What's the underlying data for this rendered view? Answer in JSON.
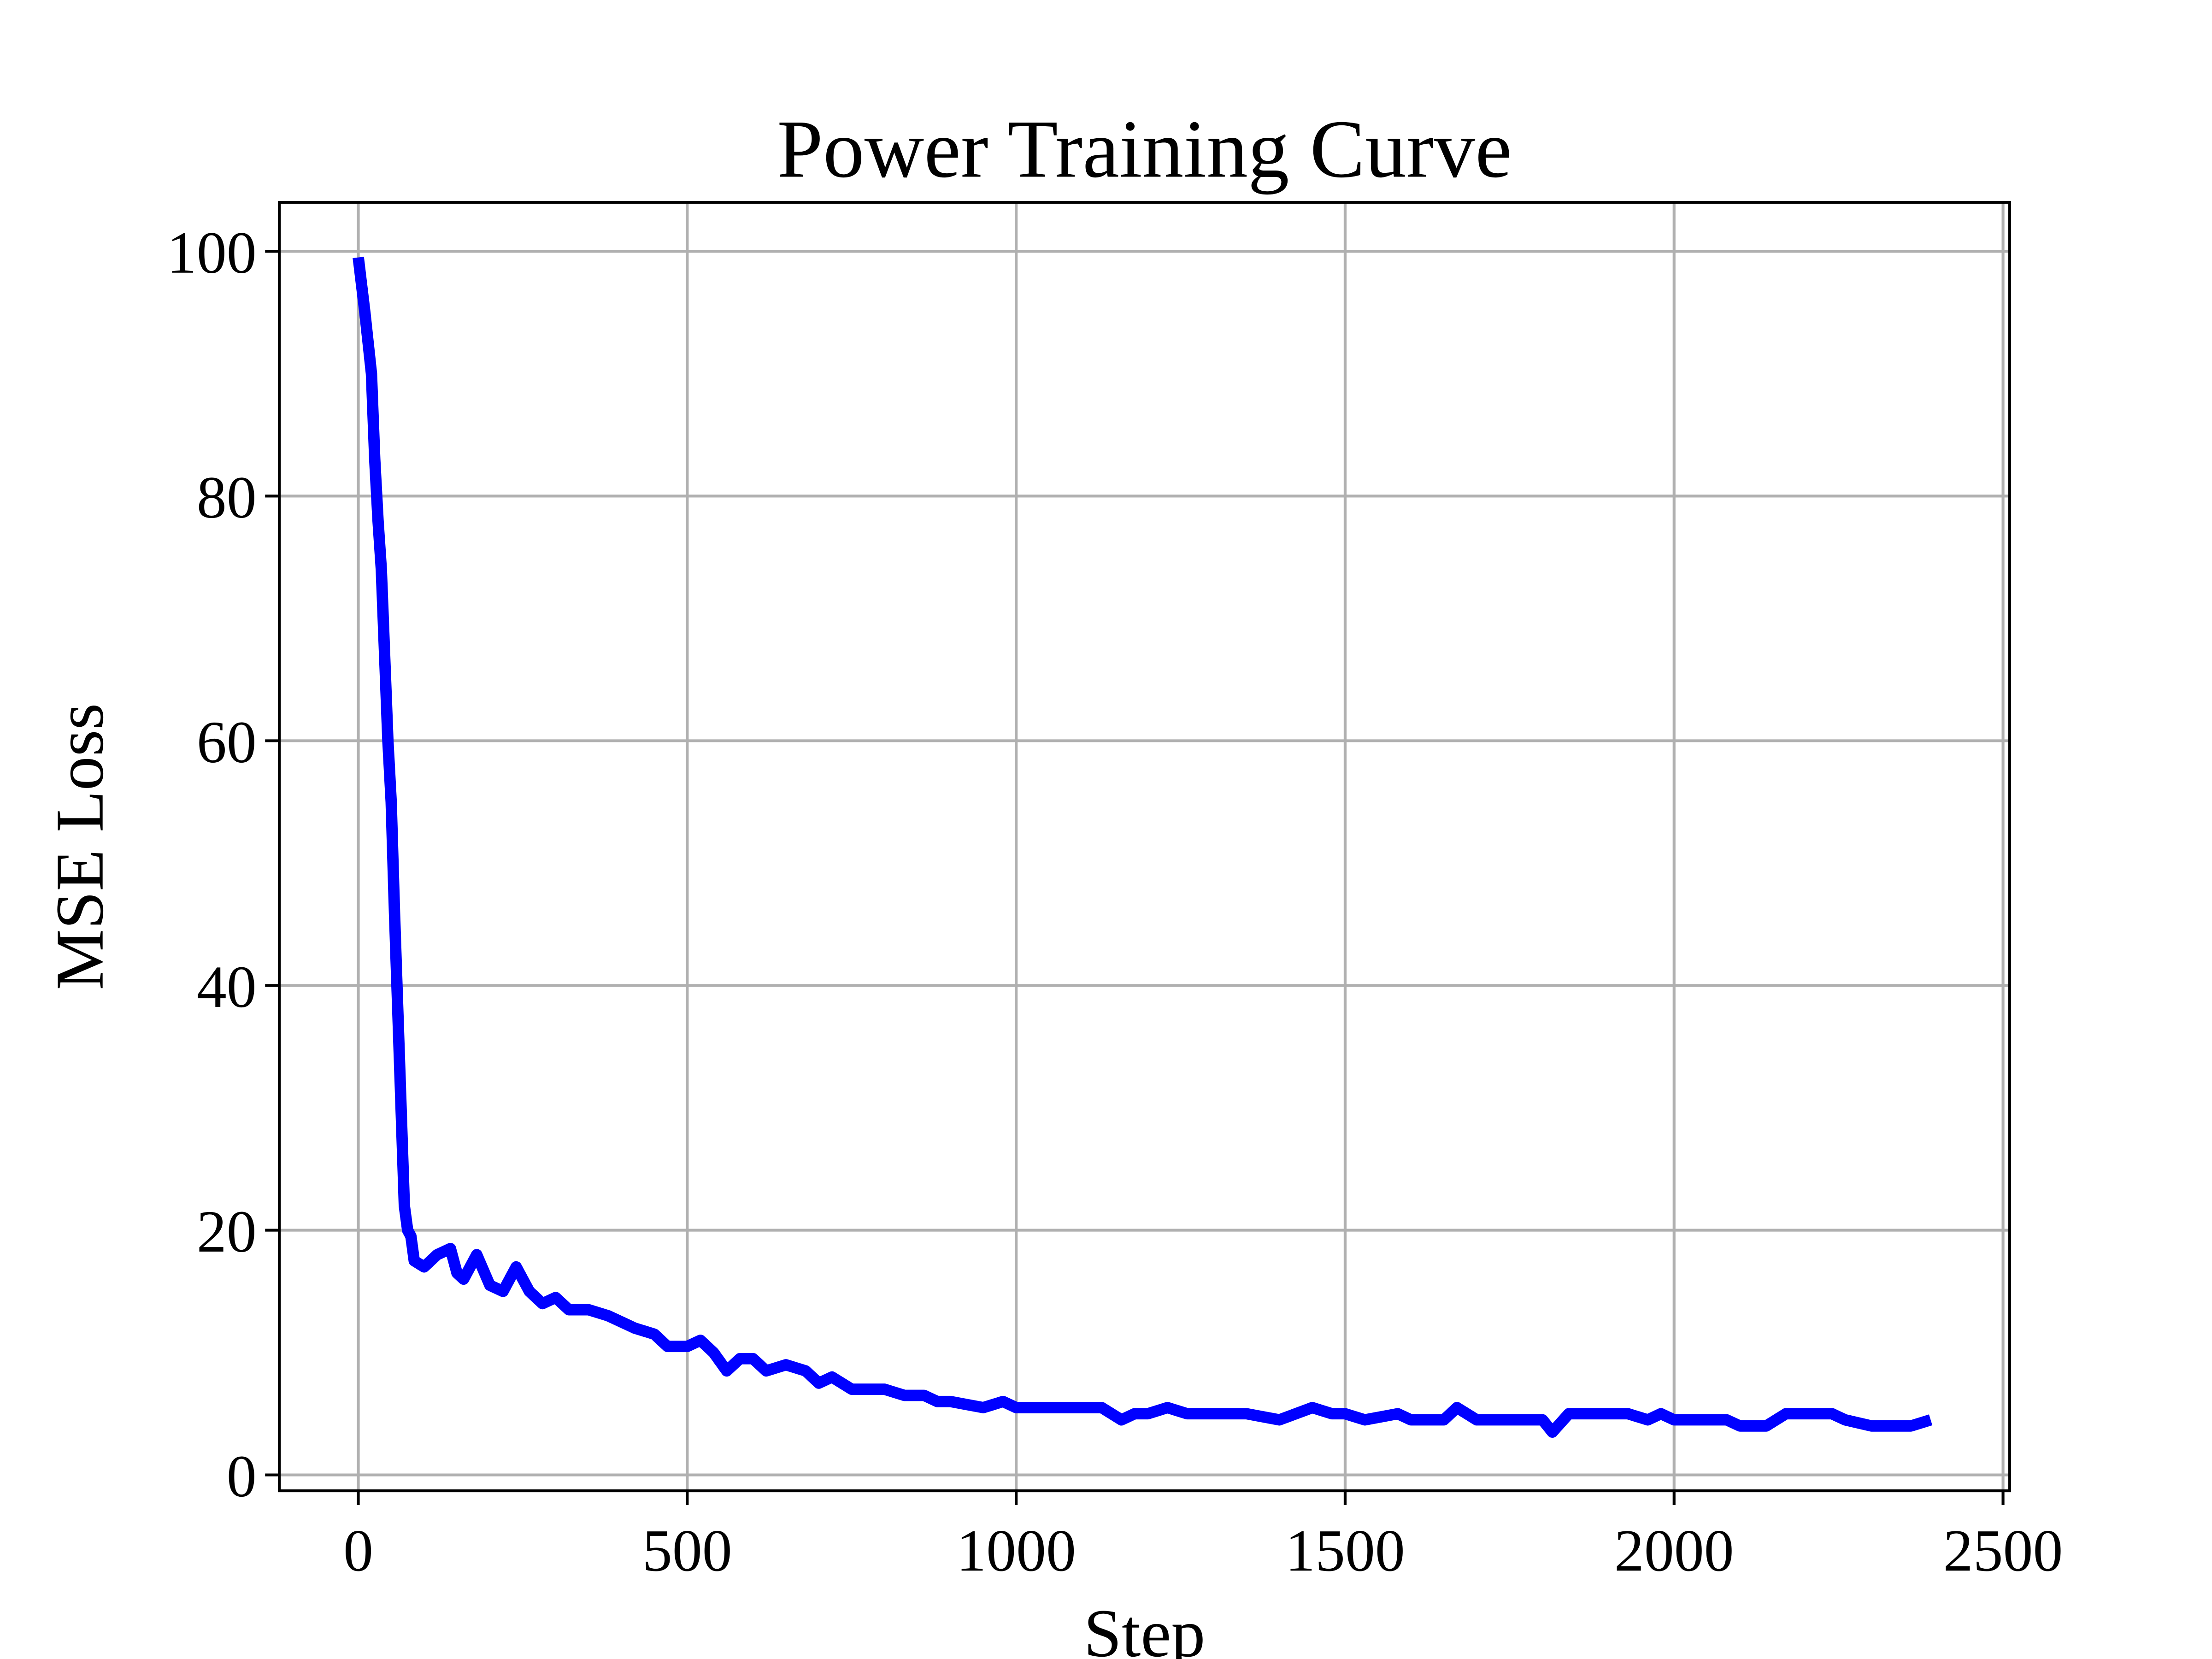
{
  "chart_data": {
    "type": "line",
    "title": "Power Training Curve",
    "x_label": "Step",
    "y_label": "MSE Loss",
    "grid": true,
    "xlim": [
      -120,
      2510
    ],
    "ylim": [
      -1.3,
      104
    ],
    "xticks": [
      0,
      500,
      1000,
      1500,
      2000,
      2500
    ],
    "yticks": [
      0,
      20,
      40,
      60,
      80,
      100
    ],
    "x": [
      0,
      10,
      20,
      25,
      30,
      35,
      40,
      45,
      50,
      55,
      60,
      65,
      70,
      75,
      80,
      85,
      100,
      120,
      140,
      150,
      160,
      180,
      200,
      220,
      240,
      260,
      280,
      300,
      320,
      350,
      380,
      400,
      420,
      450,
      470,
      500,
      520,
      540,
      560,
      580,
      600,
      620,
      650,
      680,
      700,
      720,
      750,
      780,
      800,
      830,
      860,
      880,
      900,
      950,
      980,
      1000,
      1030,
      1060,
      1100,
      1130,
      1160,
      1180,
      1200,
      1230,
      1260,
      1300,
      1350,
      1400,
      1450,
      1480,
      1500,
      1530,
      1580,
      1600,
      1650,
      1670,
      1700,
      1750,
      1800,
      1815,
      1840,
      1870,
      1900,
      1930,
      1960,
      1980,
      2000,
      2040,
      2080,
      2100,
      2140,
      2170,
      2200,
      2240,
      2260,
      2300,
      2330,
      2360,
      2390
    ],
    "series": [
      {
        "name": "MSE Loss",
        "color": "#0000ff",
        "values": [
          99.5,
          95,
          90,
          83,
          78,
          74,
          67,
          60,
          55,
          46,
          38,
          30,
          22,
          20,
          19.5,
          17.5,
          17,
          18,
          18.5,
          16.5,
          16,
          18,
          15.5,
          15,
          17,
          15,
          14,
          14.5,
          13.5,
          13.5,
          13,
          12.5,
          12,
          11.5,
          10.5,
          10.5,
          11,
          10,
          8.5,
          9.5,
          9.5,
          8.5,
          9,
          8.5,
          7.5,
          8,
          7,
          7,
          7,
          6.5,
          6.5,
          6,
          6,
          5.5,
          6,
          5.5,
          5.5,
          5.5,
          5.5,
          5.5,
          4.5,
          5,
          5,
          5.5,
          5,
          5,
          5,
          4.5,
          5.5,
          5,
          5,
          4.5,
          5,
          4.5,
          4.5,
          5.5,
          4.5,
          4.5,
          4.5,
          3.5,
          5,
          5,
          5,
          5,
          4.5,
          5,
          4.5,
          4.5,
          4.5,
          4,
          4,
          5,
          5,
          5,
          4.5,
          4,
          4,
          4,
          4.5
        ]
      }
    ]
  }
}
